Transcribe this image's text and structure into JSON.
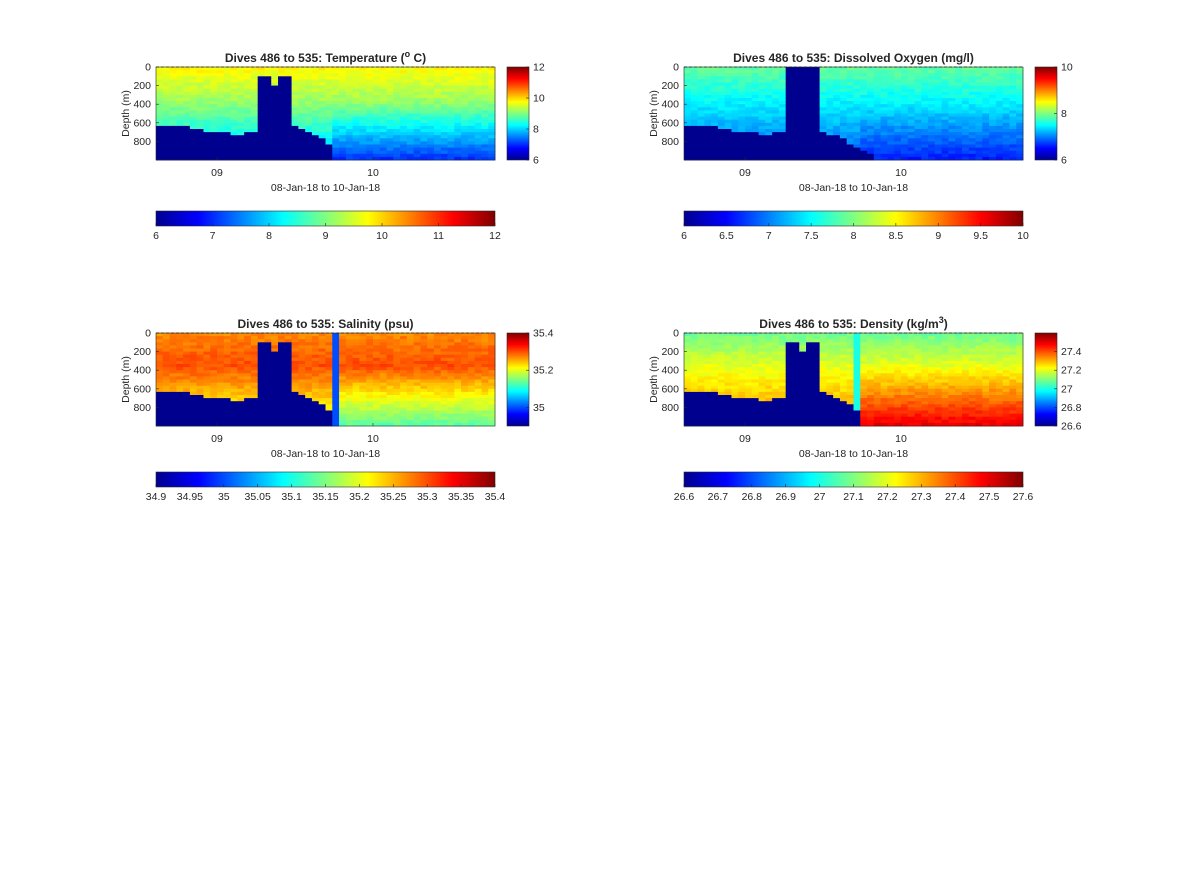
{
  "figure": {
    "background": "#ffffff",
    "colormap": "jet",
    "shared_xlabel": "08-Jan-18 to 10-Jan-18",
    "bathymetry_color": "#00008f"
  },
  "chart_data": [
    {
      "type": "heatmap",
      "title": "Dives 486 to 535: Temperature (°C)",
      "title_parts": {
        "prefix": "Dives 486 to 535: Temperature (",
        "sup": "o",
        "suffix": " C)"
      },
      "xlabel": "08-Jan-18 to 10-Jan-18",
      "ylabel": "Depth (m)",
      "x_ticks": [
        "09",
        "10"
      ],
      "y_ticks": [
        "0",
        "200",
        "400",
        "600",
        "800"
      ],
      "ylim": [
        0,
        1000
      ],
      "grid": false,
      "side_colorbar": {
        "range": [
          6,
          12
        ],
        "ticks": [
          "6",
          "8",
          "10",
          "12"
        ]
      },
      "bottom_colorbar": {
        "range": [
          6,
          12
        ],
        "ticks": [
          "6",
          "7",
          "8",
          "9",
          "10",
          "11",
          "12"
        ]
      },
      "profile": {
        "top": 9.8,
        "mid": 9.2,
        "bottom": 7.7,
        "late_bottom": 7.0
      },
      "dive_max_depth_m": [
        620,
        625,
        630,
        640,
        650,
        660,
        680,
        690,
        700,
        710,
        715,
        720,
        720,
        700,
        710,
        100,
        100,
        200,
        100,
        100,
        640,
        660,
        690,
        730,
        780,
        820,
        1000,
        1000,
        1000,
        1000,
        1000,
        1000,
        1000,
        1000,
        1000,
        1000,
        1000,
        1000,
        1000,
        1000,
        1000,
        1000,
        1000,
        1000,
        1000,
        1000,
        1000,
        1000,
        1000,
        1000
      ],
      "spike": null
    },
    {
      "type": "heatmap",
      "title": "Dives 486 to 535: Dissolved Oxygen (mg/l)",
      "title_parts": {
        "prefix": "Dives 486 to 535: Dissolved Oxygen (mg/l)",
        "sup": "",
        "suffix": ""
      },
      "xlabel": "08-Jan-18 to 10-Jan-18",
      "ylabel": "Depth (m)",
      "x_ticks": [
        "09",
        "10"
      ],
      "y_ticks": [
        "0",
        "200",
        "400",
        "600",
        "800"
      ],
      "ylim": [
        0,
        1000
      ],
      "grid": false,
      "side_colorbar": {
        "range": [
          6,
          10
        ],
        "ticks": [
          "6",
          "8",
          "10"
        ]
      },
      "bottom_colorbar": {
        "range": [
          6,
          10
        ],
        "ticks": [
          "6",
          "6.5",
          "7",
          "7.5",
          "8",
          "8.5",
          "9",
          "9.5",
          "10"
        ]
      },
      "profile": {
        "top": 7.9,
        "mid": 7.5,
        "bottom": 6.8,
        "late_bottom": 6.6
      },
      "dive_max_depth_m": [
        620,
        625,
        630,
        640,
        650,
        660,
        680,
        690,
        700,
        710,
        715,
        720,
        720,
        700,
        710,
        0,
        0,
        0,
        0,
        0,
        690,
        720,
        750,
        780,
        820,
        860,
        900,
        950,
        1000,
        1000,
        1000,
        1000,
        1000,
        1000,
        1000,
        1000,
        1000,
        1000,
        1000,
        1000,
        1000,
        1000,
        1000,
        1000,
        1000,
        1000,
        1000,
        1000,
        1000,
        1000
      ],
      "spike": null
    },
    {
      "type": "heatmap",
      "title": "Dives 486 to 535: Salinity (psu)",
      "title_parts": {
        "prefix": "Dives 486 to 535: Salinity (psu)",
        "sup": "",
        "suffix": ""
      },
      "xlabel": "08-Jan-18 to 10-Jan-18",
      "ylabel": "Depth (m)",
      "x_ticks": [
        "09",
        "10"
      ],
      "y_ticks": [
        "0",
        "200",
        "400",
        "600",
        "800"
      ],
      "ylim": [
        0,
        1000
      ],
      "grid": false,
      "side_colorbar": {
        "range": [
          34.9,
          35.4
        ],
        "ticks": [
          "35",
          "35.2",
          "35.4"
        ]
      },
      "bottom_colorbar": {
        "range": [
          34.9,
          35.4
        ],
        "ticks": [
          "34.9",
          "34.95",
          "35",
          "35.05",
          "35.1",
          "35.15",
          "35.2",
          "35.25",
          "35.3",
          "35.35",
          "35.4"
        ]
      },
      "profile": {
        "top": 35.27,
        "mid": 35.3,
        "bottom": 35.18,
        "late_bottom": 35.13
      },
      "dive_max_depth_m": [
        620,
        625,
        630,
        640,
        650,
        660,
        680,
        690,
        700,
        710,
        715,
        720,
        720,
        700,
        710,
        100,
        100,
        200,
        100,
        100,
        640,
        660,
        690,
        730,
        780,
        820,
        1000,
        1000,
        1000,
        1000,
        1000,
        1000,
        1000,
        1000,
        1000,
        1000,
        1000,
        1000,
        1000,
        1000,
        1000,
        1000,
        1000,
        1000,
        1000,
        1000,
        1000,
        1000,
        1000,
        1000
      ],
      "spike": {
        "dive_index": 26,
        "value": 35.0
      }
    },
    {
      "type": "heatmap",
      "title": "Dives 486 to 535: Density (kg/m³)",
      "title_parts": {
        "prefix": "Dives 486 to 535: Density (kg/m",
        "sup": "3",
        "suffix": ")"
      },
      "xlabel": "08-Jan-18 to 10-Jan-18",
      "ylabel": "Depth (m)",
      "x_ticks": [
        "09",
        "10"
      ],
      "y_ticks": [
        "0",
        "200",
        "400",
        "600",
        "800"
      ],
      "ylim": [
        0,
        1000
      ],
      "grid": false,
      "side_colorbar": {
        "range": [
          26.6,
          27.6
        ],
        "ticks": [
          "26.6",
          "26.8",
          "27",
          "27.2",
          "27.4"
        ]
      },
      "bottom_colorbar": {
        "range": [
          26.6,
          27.6
        ],
        "ticks": [
          "26.6",
          "26.7",
          "26.8",
          "26.9",
          "27",
          "27.1",
          "27.2",
          "27.3",
          "27.4",
          "27.5",
          "27.6"
        ]
      },
      "profile": {
        "top": 27.08,
        "mid": 27.2,
        "bottom": 27.35,
        "late_bottom": 27.5
      },
      "dive_max_depth_m": [
        620,
        625,
        630,
        640,
        650,
        660,
        680,
        690,
        700,
        710,
        715,
        720,
        720,
        700,
        710,
        100,
        100,
        200,
        100,
        100,
        640,
        660,
        690,
        730,
        780,
        820,
        1000,
        1000,
        1000,
        1000,
        1000,
        1000,
        1000,
        1000,
        1000,
        1000,
        1000,
        1000,
        1000,
        1000,
        1000,
        1000,
        1000,
        1000,
        1000,
        1000,
        1000,
        1000,
        1000,
        1000
      ],
      "spike": {
        "dive_index": 25,
        "value": 27.0
      }
    }
  ]
}
